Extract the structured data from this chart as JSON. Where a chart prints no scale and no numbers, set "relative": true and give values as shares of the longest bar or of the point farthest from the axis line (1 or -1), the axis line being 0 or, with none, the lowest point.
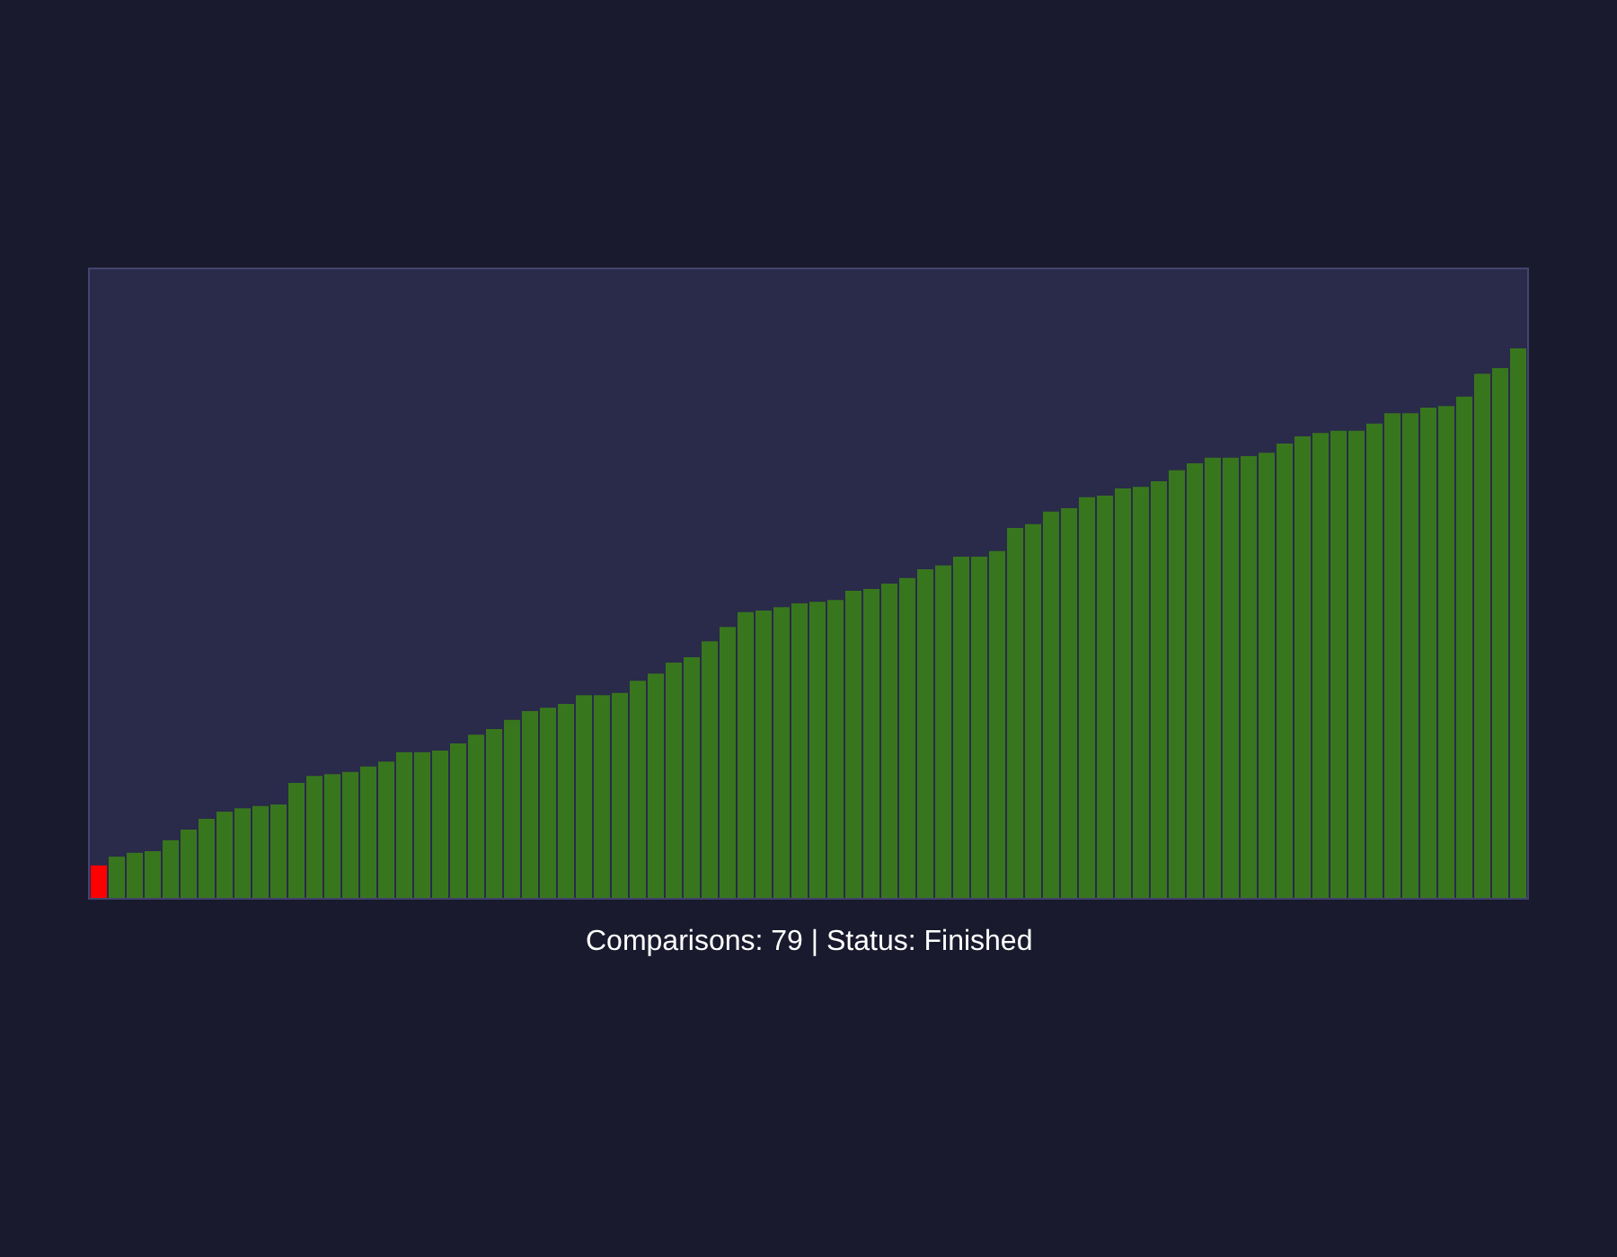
{
  "chart_data": {
    "type": "bar",
    "relative": true,
    "annotations": [
      "Comparisons: 79 | Status: Finished"
    ],
    "categories": [
      null,
      null,
      null,
      null,
      null,
      null,
      null,
      null,
      null,
      null,
      null,
      null,
      null,
      null,
      null,
      null,
      null,
      null,
      null,
      null,
      null,
      null,
      null,
      null,
      null,
      null,
      null,
      null,
      null,
      null,
      null,
      null,
      null,
      null,
      null,
      null,
      null,
      null,
      null,
      null,
      null,
      null,
      null,
      null,
      null,
      null,
      null,
      null,
      null,
      null,
      null,
      null,
      null,
      null,
      null,
      null,
      null,
      null,
      null,
      null,
      null,
      null,
      null,
      null,
      null,
      null,
      null,
      null,
      null,
      null,
      null,
      null,
      null,
      null,
      null,
      null,
      null,
      null,
      null,
      null
    ],
    "values": [
      0.059,
      0.075,
      0.082,
      0.085,
      0.105,
      0.124,
      0.144,
      0.157,
      0.163,
      0.167,
      0.17,
      0.209,
      0.222,
      0.225,
      0.229,
      0.239,
      0.248,
      0.265,
      0.265,
      0.268,
      0.281,
      0.297,
      0.307,
      0.324,
      0.34,
      0.346,
      0.353,
      0.369,
      0.369,
      0.373,
      0.395,
      0.408,
      0.428,
      0.438,
      0.467,
      0.493,
      0.52,
      0.523,
      0.529,
      0.536,
      0.539,
      0.542,
      0.559,
      0.562,
      0.572,
      0.582,
      0.598,
      0.605,
      0.621,
      0.621,
      0.631,
      0.673,
      0.68,
      0.703,
      0.709,
      0.729,
      0.732,
      0.745,
      0.748,
      0.758,
      0.778,
      0.791,
      0.801,
      0.801,
      0.804,
      0.81,
      0.827,
      0.84,
      0.846,
      0.85,
      0.85,
      0.863,
      0.882,
      0.882,
      0.892,
      0.895,
      0.912,
      0.954,
      0.964,
      1
    ],
    "colors": [
      "#ff0000",
      "#38761d",
      "#38761d",
      "#38761d",
      "#38761d",
      "#38761d",
      "#38761d",
      "#38761d",
      "#38761d",
      "#38761d",
      "#38761d",
      "#38761d",
      "#38761d",
      "#38761d",
      "#38761d",
      "#38761d",
      "#38761d",
      "#38761d",
      "#38761d",
      "#38761d",
      "#38761d",
      "#38761d",
      "#38761d",
      "#38761d",
      "#38761d",
      "#38761d",
      "#38761d",
      "#38761d",
      "#38761d",
      "#38761d",
      "#38761d",
      "#38761d",
      "#38761d",
      "#38761d",
      "#38761d",
      "#38761d",
      "#38761d",
      "#38761d",
      "#38761d",
      "#38761d",
      "#38761d",
      "#38761d",
      "#38761d",
      "#38761d",
      "#38761d",
      "#38761d",
      "#38761d",
      "#38761d",
      "#38761d",
      "#38761d",
      "#38761d",
      "#38761d",
      "#38761d",
      "#38761d",
      "#38761d",
      "#38761d",
      "#38761d",
      "#38761d",
      "#38761d",
      "#38761d",
      "#38761d",
      "#38761d",
      "#38761d",
      "#38761d",
      "#38761d",
      "#38761d",
      "#38761d",
      "#38761d",
      "#38761d",
      "#38761d",
      "#38761d",
      "#38761d",
      "#38761d",
      "#38761d",
      "#38761d",
      "#38761d",
      "#38761d",
      "#38761d",
      "#38761d",
      "#38761d"
    ]
  }
}
